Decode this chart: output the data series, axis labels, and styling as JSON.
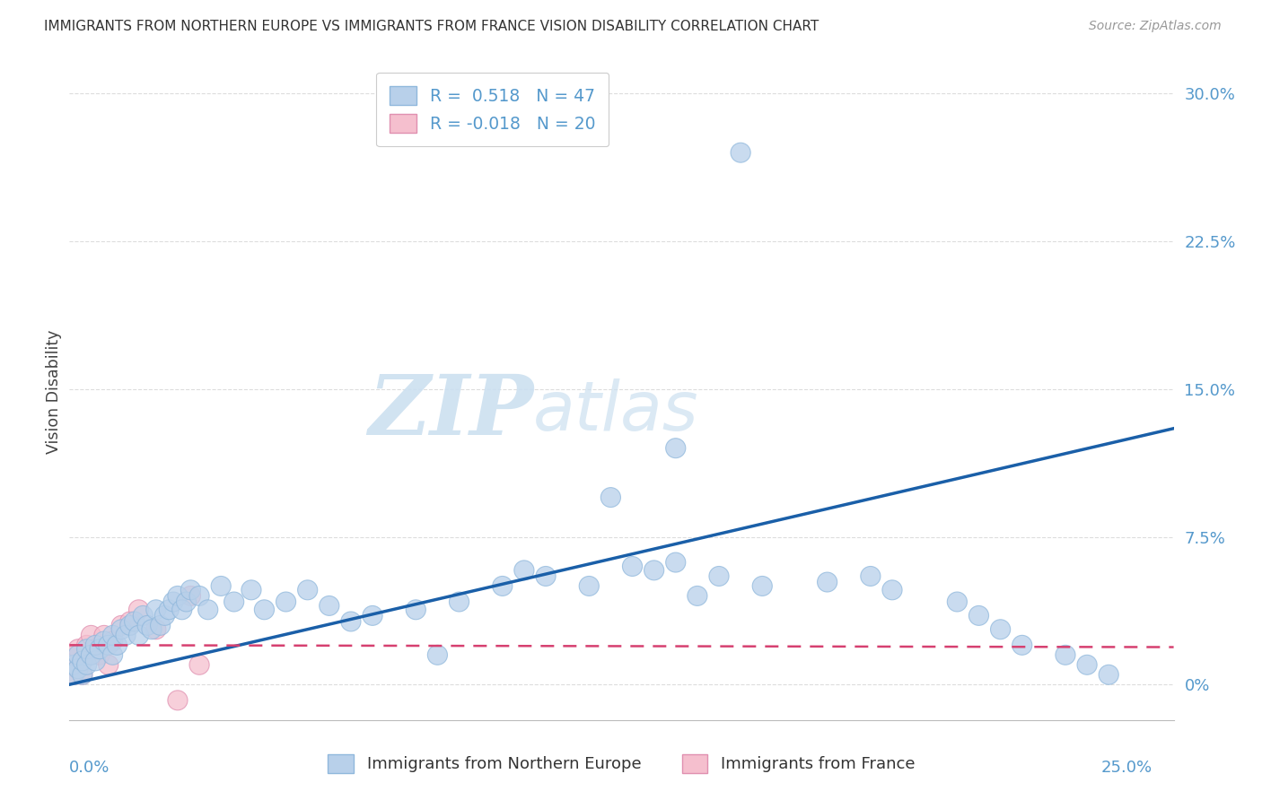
{
  "title": "IMMIGRANTS FROM NORTHERN EUROPE VS IMMIGRANTS FROM FRANCE VISION DISABILITY CORRELATION CHART",
  "source": "Source: ZipAtlas.com",
  "ylabel": "Vision Disability",
  "xlim": [
    0.0,
    0.255
  ],
  "ylim": [
    -0.018,
    0.315
  ],
  "yticks": [
    0.0,
    0.075,
    0.15,
    0.225,
    0.3
  ],
  "ytick_labels": [
    "0%",
    "7.5%",
    "15.0%",
    "22.5%",
    "30.0%"
  ],
  "R_blue": 0.518,
  "N_blue": 47,
  "R_pink": -0.018,
  "N_pink": 20,
  "legend_label_blue": "Immigrants from Northern Europe",
  "legend_label_pink": "Immigrants from France",
  "blue_color": "#b8d0ea",
  "blue_edge": "#90b8dc",
  "pink_color": "#f5bfce",
  "pink_edge": "#e090b0",
  "blue_line": "#1a5fa8",
  "pink_line": "#d64070",
  "grid_color": "#dddddd",
  "blue_x": [
    0.001,
    0.001,
    0.002,
    0.002,
    0.003,
    0.003,
    0.004,
    0.004,
    0.005,
    0.006,
    0.006,
    0.007,
    0.008,
    0.009,
    0.01,
    0.01,
    0.011,
    0.012,
    0.013,
    0.014,
    0.015,
    0.016,
    0.017,
    0.018,
    0.019,
    0.02,
    0.021,
    0.022,
    0.023,
    0.024,
    0.025,
    0.026,
    0.027,
    0.028,
    0.03,
    0.032,
    0.035,
    0.038,
    0.042,
    0.045,
    0.05,
    0.055,
    0.085,
    0.105,
    0.125,
    0.14,
    0.155
  ],
  "blue_y": [
    0.005,
    0.01,
    0.008,
    0.015,
    0.005,
    0.012,
    0.01,
    0.018,
    0.015,
    0.012,
    0.02,
    0.018,
    0.022,
    0.02,
    0.025,
    0.015,
    0.02,
    0.028,
    0.025,
    0.03,
    0.032,
    0.025,
    0.035,
    0.03,
    0.028,
    0.038,
    0.03,
    0.035,
    0.038,
    0.042,
    0.045,
    0.038,
    0.042,
    0.048,
    0.045,
    0.038,
    0.05,
    0.042,
    0.048,
    0.038,
    0.042,
    0.048,
    0.015,
    0.058,
    0.095,
    0.12,
    0.27
  ],
  "pink_x": [
    0.001,
    0.001,
    0.002,
    0.002,
    0.003,
    0.003,
    0.004,
    0.005,
    0.006,
    0.007,
    0.008,
    0.009,
    0.01,
    0.012,
    0.014,
    0.016,
    0.02,
    0.025,
    0.028,
    0.03
  ],
  "pink_y": [
    0.005,
    0.015,
    0.008,
    0.018,
    0.005,
    0.012,
    0.02,
    0.025,
    0.018,
    0.015,
    0.025,
    0.01,
    0.022,
    0.03,
    0.032,
    0.038,
    0.028,
    -0.008,
    0.045,
    0.01
  ],
  "blue_extra_x": [
    0.06,
    0.065,
    0.07,
    0.08,
    0.09,
    0.1,
    0.11,
    0.12,
    0.13,
    0.135,
    0.14,
    0.145,
    0.15,
    0.16,
    0.175,
    0.185,
    0.19,
    0.205,
    0.21,
    0.215,
    0.22,
    0.23,
    0.235,
    0.24
  ],
  "blue_extra_y": [
    0.04,
    0.032,
    0.035,
    0.038,
    0.042,
    0.05,
    0.055,
    0.05,
    0.06,
    0.058,
    0.062,
    0.045,
    0.055,
    0.05,
    0.052,
    0.055,
    0.048,
    0.042,
    0.035,
    0.028,
    0.02,
    0.015,
    0.01,
    0.005
  ],
  "blue_trendline_x": [
    0.0,
    0.255
  ],
  "blue_trendline_y": [
    0.0,
    0.13
  ],
  "pink_trendline_x": [
    0.0,
    0.255
  ],
  "pink_trendline_y": [
    0.02,
    0.019
  ],
  "watermark_zip": "ZIP",
  "watermark_atlas": "atlas",
  "background_color": "#ffffff"
}
